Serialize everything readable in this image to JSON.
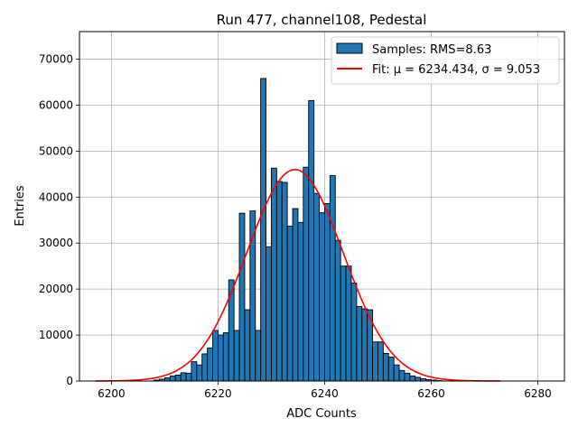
{
  "chart_data": {
    "type": "bar",
    "title": "Run 477, channel108, Pedestal",
    "xlabel": "ADC Counts",
    "ylabel": "Entries",
    "xlim": [
      6194,
      6285
    ],
    "ylim": [
      0,
      76000
    ],
    "xticks": [
      6200,
      6220,
      6240,
      6260,
      6280
    ],
    "yticks": [
      0,
      10000,
      20000,
      30000,
      40000,
      50000,
      60000,
      70000
    ],
    "grid": true,
    "legend_position": "top-right",
    "bin_width": 1,
    "bins": {
      "x": [
        6208,
        6209,
        6210,
        6211,
        6212,
        6213,
        6214,
        6215,
        6216,
        6217,
        6218,
        6219,
        6220,
        6221,
        6222,
        6223,
        6224,
        6225,
        6226,
        6227,
        6228,
        6229,
        6230,
        6231,
        6232,
        6233,
        6234,
        6235,
        6236,
        6237,
        6238,
        6239,
        6240,
        6241,
        6242,
        6243,
        6244,
        6245,
        6246,
        6247,
        6248,
        6249,
        6250,
        6251,
        6252,
        6253,
        6254,
        6255,
        6256,
        6257,
        6258,
        6259,
        6260,
        6261
      ],
      "values": [
        200,
        400,
        700,
        1100,
        1300,
        1800,
        1700,
        4200,
        3500,
        5900,
        7200,
        11000,
        10000,
        10500,
        22000,
        11000,
        36500,
        15500,
        37000,
        11000,
        65800,
        29200,
        46300,
        43400,
        43200,
        33700,
        37500,
        34500,
        46500,
        61000,
        40800,
        36600,
        38600,
        44700,
        30600,
        25000,
        25000,
        21300,
        16200,
        15700,
        15500,
        8500,
        8500,
        6000,
        5200,
        3500,
        2300,
        1700,
        1100,
        800,
        500,
        300,
        200,
        100
      ]
    },
    "fit": {
      "mu": 6234.434,
      "sigma": 9.053,
      "x_range": [
        6197,
        6273
      ],
      "peak": 46000
    },
    "series": [
      {
        "name": "Samples: RMS=8.63",
        "type": "bar",
        "color": "#1f77b4",
        "edgecolor": "#000000"
      },
      {
        "name": "Fit: μ = 6234.434, σ = 9.053",
        "type": "line",
        "color": "#ff0000"
      }
    ]
  }
}
